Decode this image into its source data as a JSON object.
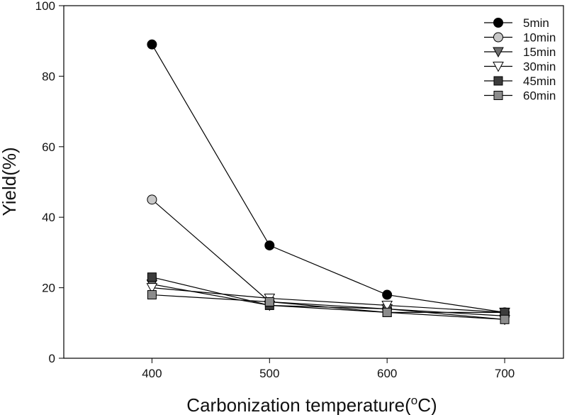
{
  "chart_data": {
    "type": "line",
    "xlabel": "Carbonization temperature(",
    "xlabel_sup": "o",
    "xlabel_tail": "C)",
    "ylabel": "Yield(%)",
    "x": [
      400,
      500,
      600,
      700
    ],
    "xlim": [
      325,
      750
    ],
    "ylim": [
      0,
      100
    ],
    "xticks": [
      "400",
      "500",
      "600",
      "700"
    ],
    "yticks": [
      "0",
      "20",
      "40",
      "60",
      "80",
      "100"
    ],
    "grid": false,
    "legend_position": "top-right",
    "series": [
      {
        "name": "5min",
        "values": [
          89,
          32,
          18,
          13
        ],
        "marker": "circle",
        "color": "#000000"
      },
      {
        "name": "10min",
        "values": [
          45,
          16,
          14,
          12
        ],
        "marker": "circle",
        "color": "#c8c8c8"
      },
      {
        "name": "15min",
        "values": [
          21,
          15,
          14,
          11
        ],
        "marker": "triangle-down",
        "color": "#6e6e6e"
      },
      {
        "name": "30min",
        "values": [
          20,
          17,
          15,
          13
        ],
        "marker": "triangle-down",
        "color": "#ffffff"
      },
      {
        "name": "45min",
        "values": [
          23,
          15,
          13,
          13
        ],
        "marker": "square",
        "color": "#3c3c3c"
      },
      {
        "name": "60min",
        "values": [
          18,
          16,
          13,
          11
        ],
        "marker": "square",
        "color": "#8c8c8c"
      }
    ]
  }
}
